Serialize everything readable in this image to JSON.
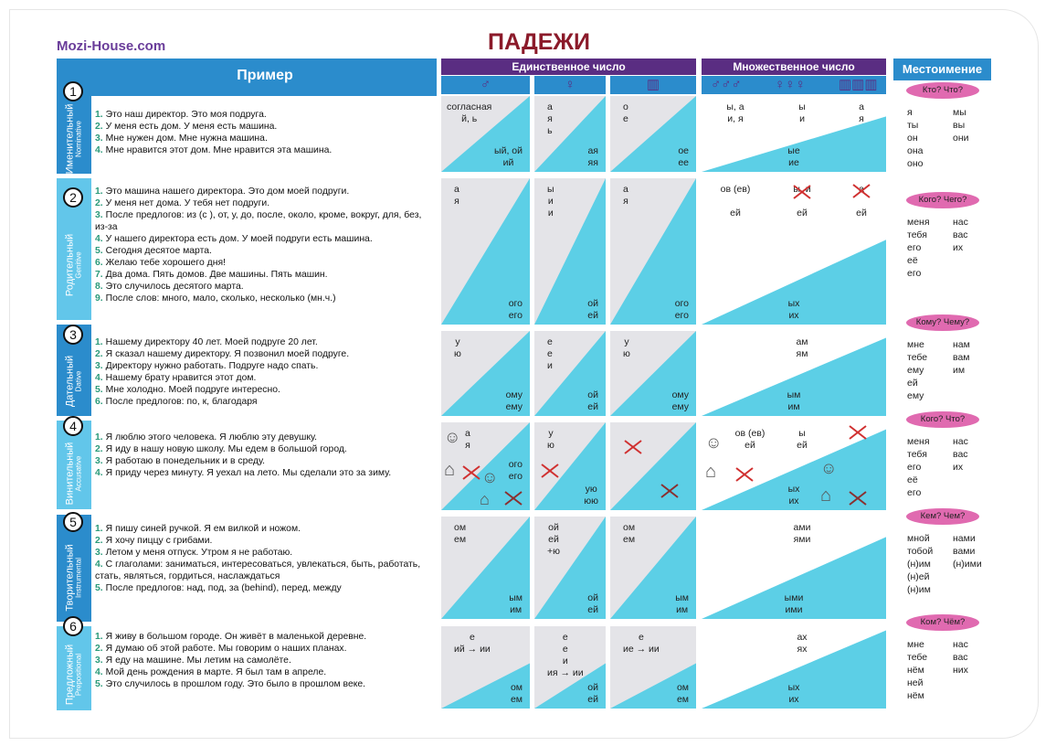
{
  "brand": "Mozi-House.com",
  "title": "ПАДЕЖИ",
  "examples_header": "Пример",
  "singular_header": "Единственное число",
  "plural_header": "Множественное число",
  "pronoun_header": "Местоимение",
  "genders": {
    "singular": [
      "♂",
      "♀",
      "▥"
    ],
    "plural": [
      "♂♂♂",
      "♀♀♀",
      "▥▥▥"
    ]
  },
  "colors": {
    "blue": "#2b8ccc",
    "light_blue": "#62c6ea",
    "cyan": "#5ccfe6",
    "purple": "#5a2d82",
    "title_red": "#8b1a2a",
    "pill_pink": "#e06ab0",
    "cross_red": "#d03030"
  },
  "rows": [
    {
      "num": "1",
      "case": "Именительный",
      "en": "Nominative",
      "examples": [
        "Это наш директор. Это моя подруга.",
        "У меня есть дом. У меня есть машина.",
        "Мне нужен дом. Мне нужна машина.",
        "Мне нравится этот дом. Мне нравится эта машина."
      ],
      "sg": [
        {
          "top": "согласная\nй, ь",
          "bottom": "ый, ой\nий"
        },
        {
          "top": "а\nя\nь",
          "bottom": "ая\nяя"
        },
        {
          "top": "о\nе",
          "bottom": "ое\nее"
        }
      ],
      "pl": {
        "top": [
          "ы, а\nи, я",
          "ы\nи",
          "а\nя"
        ],
        "bottom": "ые\nие"
      },
      "pron": {
        "q": "Кто? Что?",
        "sg": [
          "я",
          "ты",
          "он",
          "она",
          "оно"
        ],
        "pl": [
          "мы",
          "вы",
          "они"
        ]
      }
    },
    {
      "num": "2",
      "case": "Родительный",
      "en": "Genitive",
      "examples": [
        "Это машина нашего директора. Это дом моей подруги.",
        "У меня нет дома. У тебя нет подруги.",
        "После предлогов: из (с ), от, у, до, после, около, кроме, вокруг, для, без, из-за",
        "У нашего директора есть дом. У моей подруги есть машина.",
        "Сегодня десятое марта.",
        "Желаю тебе хорошего дня!",
        "Два дома. Пять домов. Две машины. Пять машин.",
        "Это случилось десятого марта.",
        "После слов: много, мало, сколько, несколько (мн.ч.)"
      ],
      "sg": [
        {
          "top": "а\nя",
          "bottom": "ого\nего"
        },
        {
          "top": "ы\nи\nи",
          "bottom": "ой\nей"
        },
        {
          "top": "а\nя",
          "bottom": "ого\nего"
        }
      ],
      "pl": {
        "top": [
          "ов (ев)\n\nей",
          "ы, и\n\nей",
          "а\n\nей"
        ],
        "bottom": "ых\nих"
      },
      "pron": {
        "q": "Кого? Чего?",
        "sg": [
          "меня",
          "тебя",
          "его",
          "её",
          "его"
        ],
        "pl": [
          "нас",
          "вас",
          "их"
        ]
      }
    },
    {
      "num": "3",
      "case": "Дательный",
      "en": "Dative",
      "examples": [
        "Нашему директору 40 лет. Моей подруге 20 лет.",
        "Я сказал нашему директору. Я позвонил моей подруге.",
        "Директору нужно работать. Подруге надо спать.",
        "Нашему брату нравится этот дом.",
        "Мне холодно. Моей подруге интересно.",
        "После предлогов: по, к, благодаря"
      ],
      "sg": [
        {
          "top": "у\nю",
          "bottom": "ому\nему"
        },
        {
          "top": "е\nе\nи",
          "bottom": "ой\nей"
        },
        {
          "top": "у\nю",
          "bottom": "ому\nему"
        }
      ],
      "pl": {
        "top": [
          "",
          "ам\nям",
          ""
        ],
        "bottom": "ым\nим"
      },
      "pron": {
        "q": "Кому? Чему?",
        "sg": [
          "мне",
          "тебе",
          "ему",
          "ей",
          "ему"
        ],
        "pl": [
          "нам",
          "вам",
          "им"
        ]
      }
    },
    {
      "num": "4",
      "case": "Винительный",
      "en": "Accusative",
      "examples": [
        "Я люблю этого человека. Я люблю эту девушку.",
        "Я иду в нашу новую школу. Мы едем в большой город.",
        "Я работаю в понедельник и в среду.",
        "Я приду через минуту. Я уехал на лето. Мы сделали это за зиму."
      ],
      "sg": [
        {
          "top": "а\nя",
          "bottom": "ого\nего"
        },
        {
          "top": "у\nю",
          "bottom": "ую\nюю"
        },
        {
          "top": "",
          "bottom": ""
        }
      ],
      "pl": {
        "top": [
          "ов (ев)\nей",
          "ы\nей",
          ""
        ],
        "bottom": "ых\nих"
      },
      "pron": {
        "q": "Кого? Что?",
        "sg": [
          "меня",
          "тебя",
          "его",
          "её",
          "его"
        ],
        "pl": [
          "нас",
          "вас",
          "их"
        ]
      }
    },
    {
      "num": "5",
      "case": "Творительный",
      "en": "Instrumental",
      "examples": [
        "Я пишу синей ручкой. Я ем вилкой и ножом.",
        "Я хочу пиццу с грибами.",
        "Летом у меня отпуск. Утром я не работаю.",
        "С глаголами: заниматься, интересоваться, увлекаться, быть, работать, стать, являться,  гордиться, наслаждаться",
        "После предлогов: над, под, за (behind), перед, между"
      ],
      "sg": [
        {
          "top": "ом\nем",
          "bottom": "ым\nим"
        },
        {
          "top": "ой\nей\n+ю",
          "bottom": "ой\nей"
        },
        {
          "top": "ом\nем",
          "bottom": "ым\nим"
        }
      ],
      "pl": {
        "top": [
          "",
          "ами\nями",
          ""
        ],
        "bottom": "ыми\nими"
      },
      "pron": {
        "q": "Кем? Чем?",
        "sg": [
          "мной",
          "тобой",
          "(н)им",
          "(н)ей",
          "(н)им"
        ],
        "pl": [
          "нами",
          "вами",
          "(н)ими"
        ]
      }
    },
    {
      "num": "6",
      "case": "Предложный",
      "en": "Prepositional",
      "examples": [
        "Я живу в большом городе. Он живёт в маленькой деревне.",
        "Я думаю об этой работе. Мы говорим о наших планах.",
        "Я еду на машине. Мы летим на самолёте.",
        "Мой день рождения в марте. Я был там в апреле.",
        "Это случилось в прошлом году.  Это было в прошлом веке."
      ],
      "sg": [
        {
          "top": "е\nий → ии",
          "bottom": "ом\nем"
        },
        {
          "top": "е\nе\nи\nия → ии",
          "bottom": "ой\nей"
        },
        {
          "top": "е\nие → ии",
          "bottom": "ом\nем"
        }
      ],
      "pl": {
        "top": [
          "",
          "ах\nях",
          ""
        ],
        "bottom": "ых\nих"
      },
      "pron": {
        "q": "Ком? Чём?",
        "sg": [
          "мне",
          "тебе",
          "нём",
          "ней",
          "нём"
        ],
        "pl": [
          "нас",
          "вас",
          "них"
        ]
      }
    }
  ]
}
